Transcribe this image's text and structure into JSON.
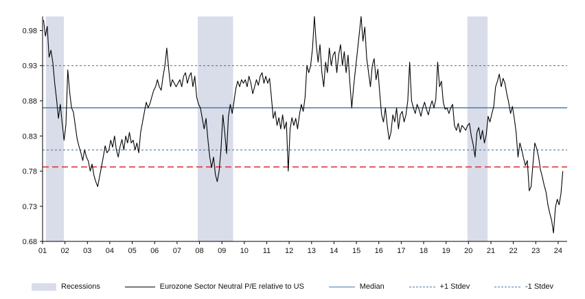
{
  "chart_data": {
    "type": "line",
    "title": "",
    "xlabel": "",
    "ylabel": "",
    "xlim": [
      2001,
      2024.4
    ],
    "ylim": [
      0.68,
      1.0
    ],
    "yticks": [
      0.68,
      0.73,
      0.78,
      0.83,
      0.88,
      0.93,
      0.98
    ],
    "xtick_labels": [
      "01",
      "02",
      "03",
      "04",
      "05",
      "06",
      "07",
      "08",
      "09",
      "10",
      "11",
      "12",
      "13",
      "14",
      "15",
      "16",
      "17",
      "18",
      "19",
      "20",
      "21",
      "22",
      "23",
      "24"
    ],
    "grid": "off",
    "legend_position": "bottom",
    "colors": {
      "line": "#000000",
      "recession_band": "#d9dde9",
      "median": "#4a7aab",
      "stdev": "#4a7aab",
      "red_dashed": "#e03131",
      "axis": "#000000"
    },
    "recession_bands": [
      [
        2001.15,
        2001.95
      ],
      [
        2007.92,
        2009.5
      ],
      [
        2019.95,
        2020.85
      ]
    ],
    "reference_lines": [
      {
        "name": "median",
        "value": 0.87,
        "color": "#4a7aab",
        "style": "solid",
        "dash": "",
        "width": 1.5
      },
      {
        "name": "plus-1-stdev",
        "value": 0.93,
        "color": "#4a7aab",
        "style": "dashed",
        "dash": "3 3",
        "width": 1.1
      },
      {
        "name": "minus-1-stdev",
        "value": 0.81,
        "color": "#4a7aab",
        "style": "dashed",
        "dash": "3 3",
        "width": 1.1
      },
      {
        "name": "red-dashed-level",
        "value": 0.786,
        "color": "#e03131",
        "style": "dashed",
        "dash": "9 5",
        "width": 1.6
      }
    ],
    "series": {
      "name": "Eurozone Sector Neutral P/E relative to US",
      "start": 2001,
      "freq": "monthly",
      "values": [
        0.995,
        0.972,
        0.986,
        0.942,
        0.952,
        0.934,
        0.905,
        0.882,
        0.855,
        0.875,
        0.848,
        0.824,
        0.846,
        0.924,
        0.892,
        0.87,
        0.864,
        0.845,
        0.826,
        0.815,
        0.806,
        0.795,
        0.81,
        0.8,
        0.794,
        0.78,
        0.79,
        0.774,
        0.765,
        0.758,
        0.772,
        0.786,
        0.8,
        0.816,
        0.806,
        0.81,
        0.824,
        0.814,
        0.83,
        0.81,
        0.8,
        0.815,
        0.825,
        0.81,
        0.83,
        0.82,
        0.835,
        0.82,
        0.824,
        0.81,
        0.82,
        0.806,
        0.835,
        0.85,
        0.864,
        0.878,
        0.87,
        0.876,
        0.886,
        0.895,
        0.9,
        0.91,
        0.9,
        0.895,
        0.915,
        0.93,
        0.955,
        0.925,
        0.9,
        0.91,
        0.905,
        0.9,
        0.905,
        0.91,
        0.9,
        0.915,
        0.92,
        0.905,
        0.915,
        0.92,
        0.9,
        0.915,
        0.885,
        0.875,
        0.87,
        0.855,
        0.84,
        0.855,
        0.825,
        0.8,
        0.785,
        0.8,
        0.775,
        0.765,
        0.78,
        0.81,
        0.86,
        0.835,
        0.805,
        0.858,
        0.875,
        0.862,
        0.88,
        0.898,
        0.908,
        0.9,
        0.91,
        0.905,
        0.91,
        0.9,
        0.915,
        0.905,
        0.89,
        0.9,
        0.91,
        0.902,
        0.915,
        0.92,
        0.905,
        0.915,
        0.905,
        0.912,
        0.885,
        0.855,
        0.865,
        0.845,
        0.856,
        0.84,
        0.86,
        0.84,
        0.85,
        0.78,
        0.84,
        0.856,
        0.845,
        0.855,
        0.84,
        0.86,
        0.875,
        0.865,
        0.885,
        0.93,
        0.92,
        0.93,
        0.955,
        1.0,
        0.96,
        0.935,
        0.96,
        0.92,
        0.9,
        0.935,
        0.92,
        0.955,
        0.93,
        0.945,
        0.95,
        0.92,
        0.945,
        0.96,
        0.93,
        0.95,
        0.92,
        0.945,
        0.905,
        0.87,
        0.9,
        0.925,
        0.95,
        0.975,
        1.0,
        0.965,
        0.985,
        0.94,
        0.92,
        0.9,
        0.93,
        0.94,
        0.91,
        0.925,
        0.89,
        0.86,
        0.85,
        0.87,
        0.845,
        0.825,
        0.835,
        0.86,
        0.85,
        0.87,
        0.84,
        0.86,
        0.865,
        0.85,
        0.86,
        0.88,
        0.935,
        0.88,
        0.87,
        0.862,
        0.875,
        0.868,
        0.858,
        0.87,
        0.878,
        0.868,
        0.86,
        0.872,
        0.88,
        0.87,
        0.882,
        0.935,
        0.9,
        0.908,
        0.878,
        0.868,
        0.87,
        0.862,
        0.87,
        0.875,
        0.845,
        0.838,
        0.848,
        0.835,
        0.845,
        0.842,
        0.838,
        0.845,
        0.848,
        0.83,
        0.818,
        0.8,
        0.835,
        0.842,
        0.825,
        0.838,
        0.82,
        0.832,
        0.858,
        0.85,
        0.862,
        0.872,
        0.9,
        0.908,
        0.918,
        0.9,
        0.912,
        0.905,
        0.89,
        0.878,
        0.862,
        0.872,
        0.855,
        0.835,
        0.8,
        0.82,
        0.81,
        0.798,
        0.788,
        0.795,
        0.752,
        0.758,
        0.79,
        0.82,
        0.812,
        0.8,
        0.782,
        0.772,
        0.76,
        0.75,
        0.732,
        0.72,
        0.71,
        0.692,
        0.728,
        0.74,
        0.732,
        0.748,
        0.78
      ]
    }
  },
  "legend": {
    "items": [
      {
        "label": "Recessions",
        "swatch": "band"
      },
      {
        "label": "Eurozone Sector Neutral P/E relative to US",
        "swatch": "line-black"
      },
      {
        "label": "Median",
        "swatch": "line-blue"
      },
      {
        "label": "+1 Stdev",
        "swatch": "dashed-blue"
      },
      {
        "label": "-1 Stdev",
        "swatch": "dashed-blue"
      }
    ]
  }
}
